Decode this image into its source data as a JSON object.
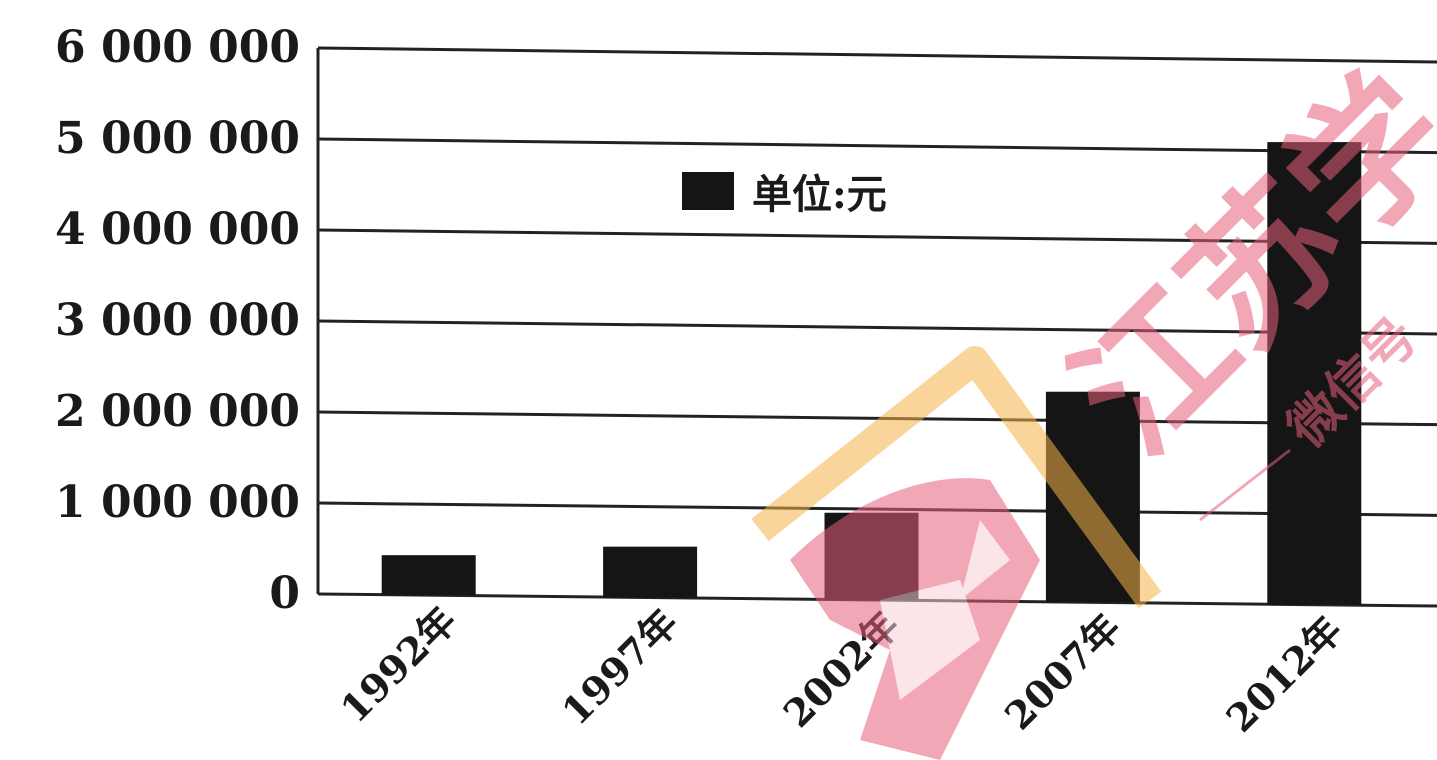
{
  "chart_data": {
    "type": "bar",
    "categories": [
      "1992年",
      "1997年",
      "2002年",
      "2007年",
      "2012年"
    ],
    "series": [
      {
        "name": "单位:元",
        "values": [
          440000,
          560000,
          960000,
          2320000,
          5100000
        ]
      }
    ],
    "yticks": [
      "0",
      "1 000 000",
      "2 000 000",
      "3 000 000",
      "4 000 000",
      "5 000 000",
      "6 000 000"
    ],
    "ylim": [
      0,
      6000000
    ],
    "grid": true,
    "legend_position": "top-center",
    "colors": {
      "bar": "#151515",
      "grid": "#222222"
    }
  },
  "watermark": {
    "text_main": "江苏学",
    "text_sub": "微信号",
    "colors": {
      "pink": "#e8607a",
      "orange": "#f5b24a"
    }
  }
}
